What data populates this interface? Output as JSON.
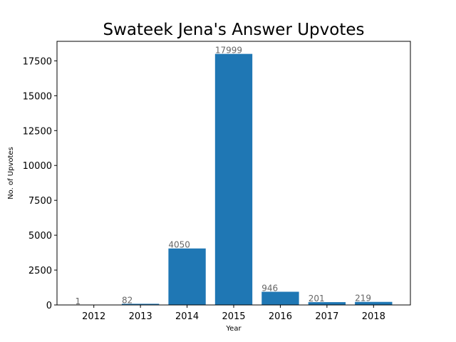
{
  "chart_data": {
    "type": "bar",
    "title": "Swateek Jena's Answer Upvotes",
    "xlabel": "Year",
    "ylabel": "No. of Upvotes",
    "categories": [
      "2012",
      "2013",
      "2014",
      "2015",
      "2016",
      "2017",
      "2018"
    ],
    "values": [
      1,
      82,
      4050,
      17999,
      946,
      201,
      219
    ],
    "data_labels": [
      "1",
      "82",
      "4050",
      "17999",
      "946",
      "201",
      "219"
    ],
    "ylim": [
      0,
      18900
    ],
    "yticks": [
      0,
      2500,
      5000,
      7500,
      10000,
      12500,
      15000,
      17500
    ],
    "ytick_labels": [
      "0",
      "2500",
      "5000",
      "7500",
      "10000",
      "12500",
      "15000",
      "17500"
    ],
    "bar_color": "#1f77b4",
    "label_color": "#666666",
    "grid": false,
    "legend": "none"
  }
}
